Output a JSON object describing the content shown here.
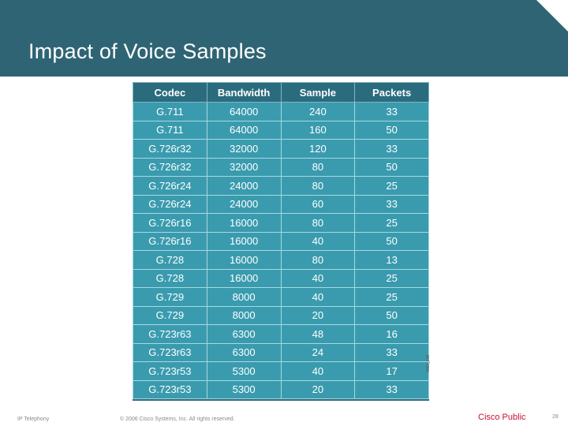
{
  "slide": {
    "title": "Impact of Voice Samples",
    "figure_code": "0083_218"
  },
  "table": {
    "headers": [
      "Codec",
      "Bandwidth",
      "Sample",
      "Packets"
    ],
    "rows": [
      [
        "G.711",
        "64000",
        "240",
        "33"
      ],
      [
        "G.711",
        "64000",
        "160",
        "50"
      ],
      [
        "G.726r32",
        "32000",
        "120",
        "33"
      ],
      [
        "G.726r32",
        "32000",
        "80",
        "50"
      ],
      [
        "G.726r24",
        "24000",
        "80",
        "25"
      ],
      [
        "G.726r24",
        "24000",
        "60",
        "33"
      ],
      [
        "G.726r16",
        "16000",
        "80",
        "25"
      ],
      [
        "G.726r16",
        "16000",
        "40",
        "50"
      ],
      [
        "G.728",
        "16000",
        "80",
        "13"
      ],
      [
        "G.728",
        "16000",
        "40",
        "25"
      ],
      [
        "G.729",
        "8000",
        "40",
        "25"
      ],
      [
        "G.729",
        "8000",
        "20",
        "50"
      ],
      [
        "G.723r63",
        "6300",
        "48",
        "16"
      ],
      [
        "G.723r63",
        "6300",
        "24",
        "33"
      ],
      [
        "G.723r53",
        "5300",
        "40",
        "17"
      ],
      [
        "G.723r53",
        "5300",
        "20",
        "33"
      ]
    ]
  },
  "footer": {
    "left": "IP Telephony",
    "copyright": "© 2006 Cisco Systems, Inc. All rights reserved.",
    "classification": "Cisco Public",
    "page": "28"
  },
  "colors": {
    "header_bar": "#2f6474",
    "table_header": "#2a6c7e",
    "table_cell": "#3a9bae",
    "classification_text": "#c8102e"
  }
}
